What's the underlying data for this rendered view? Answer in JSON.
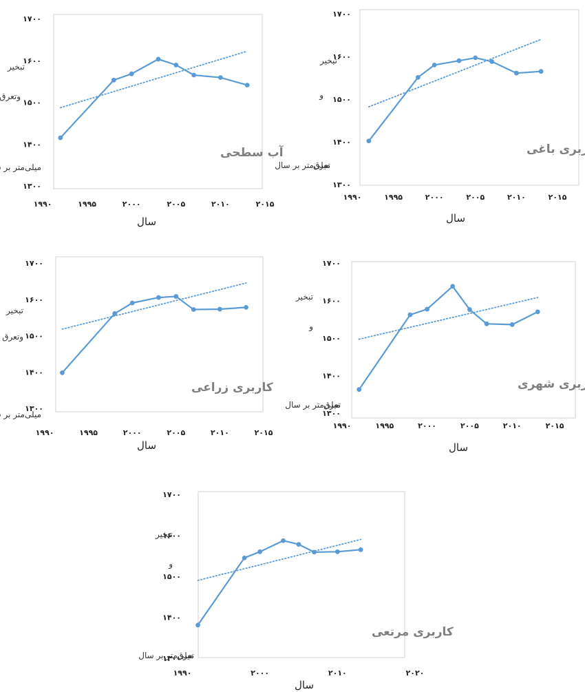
{
  "chart_data": [
    {
      "type": "line",
      "title": "آب سطحی",
      "xlabel": "سال",
      "ylabel_lines": [
        "تبخیر",
        "وتعرق",
        "میلی‌متر بر سال"
      ],
      "x": [
        1992,
        1998,
        2000,
        2003,
        2005,
        2007,
        2010,
        2013
      ],
      "series": [
        {
          "values": [
            1415,
            1553,
            1568,
            1603,
            1589,
            1565,
            1559,
            1541
          ]
        }
      ],
      "trend": {
        "x": [
          1992,
          2013
        ],
        "values": [
          1487,
          1622
        ]
      },
      "xlim": [
        1990,
        2015
      ],
      "ylim": [
        1300,
        1700
      ],
      "xticks": [
        1990,
        1995,
        2000,
        2005,
        2010,
        2015
      ],
      "xtick_labels": [
        "۱۹۹۰",
        "۱۹۹۵",
        "۲۰۰۰",
        "۲۰۰۵",
        "۲۰۱۰",
        "۲۰۱۵"
      ],
      "yticks": [
        1300,
        1400,
        1500,
        1600,
        1700
      ],
      "ytick_labels": [
        "۱۳۰۰",
        "۱۴۰۰",
        "۱۵۰۰",
        "۱۶۰۰",
        "۱۷۰۰"
      ],
      "color": "#5b9bd5",
      "grid": false
    },
    {
      "type": "line",
      "title": "کاربری باغی",
      "xlabel": "سال",
      "ylabel_lines": [
        "تبخیر",
        "و",
        "تعرق",
        "میلی‌متر بر سال"
      ],
      "x": [
        1992,
        1998,
        2000,
        2003,
        2005,
        2007,
        2010,
        2013
      ],
      "series": [
        {
          "values": [
            1402,
            1551,
            1580,
            1590,
            1597,
            1588,
            1561,
            1565
          ]
        }
      ],
      "trend": {
        "x": [
          1992,
          2013
        ],
        "values": [
          1482,
          1640
        ]
      },
      "xlim": [
        1990,
        2015
      ],
      "ylim": [
        1300,
        1700
      ],
      "xticks": [
        1990,
        1995,
        2000,
        2005,
        2010,
        2015
      ],
      "xtick_labels": [
        "۱۹۹۰",
        "۱۹۹۵",
        "۲۰۰۰",
        "۲۰۰۵",
        "۲۰۱۰",
        "۲۰۱۵"
      ],
      "yticks": [
        1300,
        1400,
        1500,
        1600,
        1700
      ],
      "ytick_labels": [
        "۱۳۰۰",
        "۱۴۰۰",
        "۱۵۰۰",
        "۱۶۰۰",
        "۱۷۰۰"
      ],
      "color": "#5b9bd5",
      "grid": false
    },
    {
      "type": "line",
      "title": "کاربری زراعی",
      "xlabel": "سال",
      "ylabel_lines": [
        "تبخیر",
        "وتعرق",
        "میلی‌متر بر سال"
      ],
      "x": [
        1992,
        1998,
        2000,
        2003,
        2005,
        2007,
        2010,
        2013
      ],
      "series": [
        {
          "values": [
            1398,
            1561,
            1590,
            1605,
            1608,
            1572,
            1573,
            1578
          ]
        }
      ],
      "trend": {
        "x": [
          1992,
          2013
        ],
        "values": [
          1518,
          1645
        ]
      },
      "xlim": [
        1990,
        2015
      ],
      "ylim": [
        1300,
        1700
      ],
      "xticks": [
        1990,
        1995,
        2000,
        2005,
        2010,
        2015
      ],
      "xtick_labels": [
        "۱۹۹۰",
        "۱۹۹۵",
        "۲۰۰۰",
        "۲۰۰۵",
        "۲۰۱۰",
        "۲۰۱۵"
      ],
      "yticks": [
        1300,
        1400,
        1500,
        1600,
        1700
      ],
      "ytick_labels": [
        "۱۳۰۰",
        "۱۴۰۰",
        "۱۵۰۰",
        "۱۶۰۰",
        "۱۷۰۰"
      ],
      "color": "#5b9bd5",
      "grid": false
    },
    {
      "type": "line",
      "title": "کاربری شهری",
      "xlabel": "سال",
      "ylabel_lines": [
        "تبخیر",
        "و",
        "تعرق",
        "میلی‌متر بر سال"
      ],
      "x": [
        1992,
        1998,
        2000,
        2003,
        2005,
        2007,
        2010,
        2013
      ],
      "series": [
        {
          "values": [
            1363,
            1562,
            1577,
            1638,
            1576,
            1538,
            1536,
            1570
          ]
        }
      ],
      "trend": {
        "x": [
          1992,
          2013
        ],
        "values": [
          1497,
          1608
        ]
      },
      "xlim": [
        1990,
        2015
      ],
      "ylim": [
        1300,
        1700
      ],
      "xticks": [
        1990,
        1995,
        2000,
        2005,
        2010,
        2015
      ],
      "xtick_labels": [
        "۱۹۹۰",
        "۱۹۹۵",
        "۲۰۰۰",
        "۲۰۰۵",
        "۲۰۱۰",
        "۲۰۱۵"
      ],
      "yticks": [
        1300,
        1400,
        1500,
        1600,
        1700
      ],
      "ytick_labels": [
        "۱۳۰۰",
        "۱۴۰۰",
        "۱۵۰۰",
        "۱۶۰۰",
        "۱۷۰۰"
      ],
      "color": "#5b9bd5",
      "grid": false
    },
    {
      "type": "line",
      "title": "کاربری مرتعی",
      "xlabel": "سال",
      "ylabel_lines": [
        "تبخیر",
        "و",
        "تعرق",
        "میلی‌متر بر سال"
      ],
      "x": [
        1992,
        1998,
        2000,
        2003,
        2005,
        2007,
        2010,
        2013
      ],
      "series": [
        {
          "values": [
            1381,
            1545,
            1560,
            1587,
            1578,
            1559,
            1560,
            1565
          ]
        }
      ],
      "trend": {
        "x": [
          1992,
          2013
        ],
        "values": [
          1490,
          1590
        ]
      },
      "xlim": [
        1990,
        2020
      ],
      "ylim": [
        1300,
        1700
      ],
      "xticks": [
        1990,
        2000,
        2010,
        2020
      ],
      "xtick_labels": [
        "۱۹۹۰",
        "۲۰۰۰",
        "۲۰۱۰",
        "۲۰۲۰"
      ],
      "yticks": [
        1300,
        1400,
        1500,
        1600,
        1700
      ],
      "ytick_labels": [
        "۱۳۰۰",
        "۱۴۰۰",
        "۱۵۰۰",
        "۱۶۰۰",
        "۱۷۰۰"
      ],
      "color": "#5b9bd5",
      "grid": false
    }
  ]
}
